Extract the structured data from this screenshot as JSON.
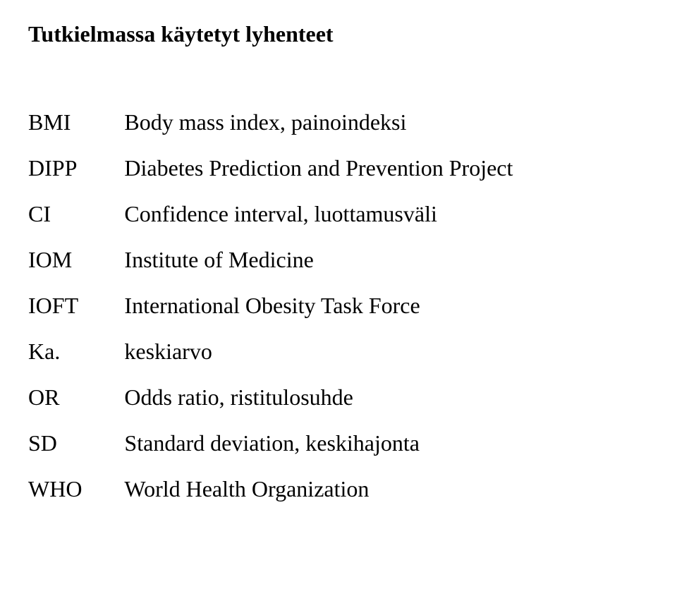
{
  "heading": "Tutkielmassa käytetyt lyhenteet",
  "abbreviations": [
    {
      "key": "BMI",
      "value": "Body mass index, painoindeksi"
    },
    {
      "key": "DIPP",
      "value": "Diabetes Prediction and Prevention Project"
    },
    {
      "key": "CI",
      "value": "Confidence interval, luottamusväli"
    },
    {
      "key": "IOM",
      "value": "Institute of Medicine"
    },
    {
      "key": "IOFT",
      "value": "International Obesity Task Force"
    },
    {
      "key": "Ka.",
      "value": "keskiarvo"
    },
    {
      "key": "OR",
      "value": "Odds ratio, ristitulosuhde"
    },
    {
      "key": "SD",
      "value": "Standard deviation, keskihajonta"
    },
    {
      "key": "WHO",
      "value": "World Health Organization"
    }
  ],
  "style": {
    "background_color": "#ffffff",
    "text_color": "#000000",
    "heading_fontsize": 32,
    "body_fontsize": 32,
    "font_family": "Times New Roman"
  }
}
